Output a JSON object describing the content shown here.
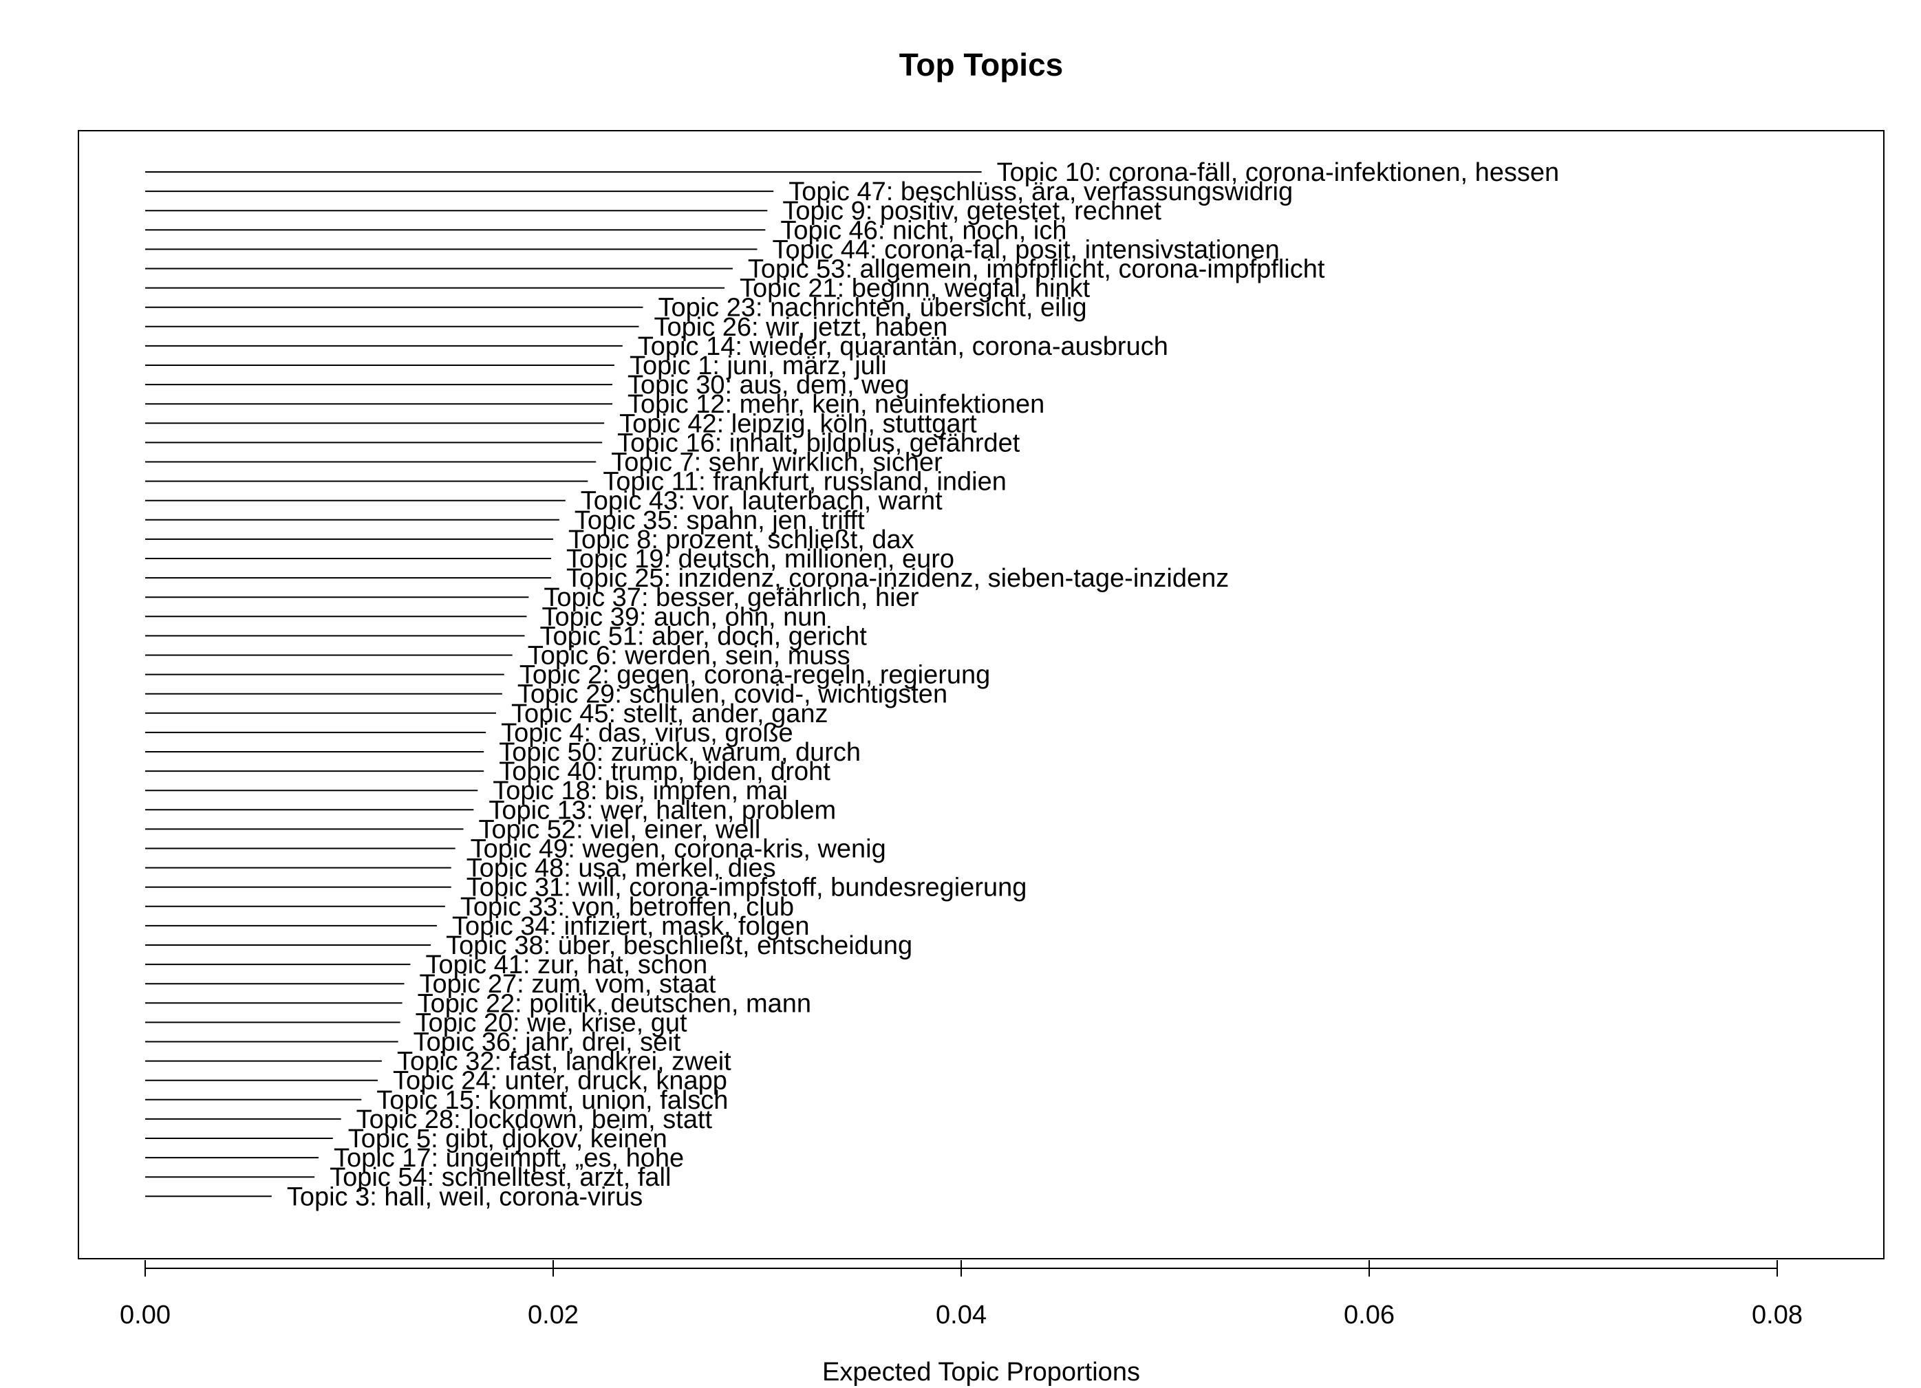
{
  "chart_data": {
    "type": "bar",
    "orientation": "horizontal",
    "title": "Top Topics",
    "xlabel": "Expected Topic Proportions",
    "ylabel": "",
    "xlim": [
      0,
      0.085
    ],
    "xticks": [
      0.0,
      0.02,
      0.04,
      0.06,
      0.08
    ],
    "xtick_labels": [
      "0.00",
      "0.02",
      "0.04",
      "0.06",
      "0.08"
    ],
    "grid": false,
    "categories": [
      "Topic 10: corona-fäll, corona-infektionen, hessen",
      "Topic 47: beschlüss, ära, verfassungswidrig",
      "Topic 9: positiv, getestet, rechnet",
      "Topic 46: nicht, noch, ich",
      "Topic 44: corona-fal, posit, intensivstationen",
      "Topic 53: allgemein, impfpflicht, corona-impfpflicht",
      "Topic 21: beginn, wegfal, hinkt",
      "Topic 23: nachrichten, übersicht, eilig",
      "Topic 26: wir, jetzt, haben",
      "Topic 14: wieder, quarantän, corona-ausbruch",
      "Topic 1: juni, märz, juli",
      "Topic 30: aus, dem, weg",
      "Topic 12: mehr, kein, neuinfektionen",
      "Topic 42: leipzig, köln, stuttgart",
      "Topic 16: inhalt, bildplus, gefährdet",
      "Topic 7: sehr, wirklich, sicher",
      "Topic 11: frankfurt, russland, indien",
      "Topic 43: vor, lauterbach, warnt",
      "Topic 35: spahn, jen, trifft",
      "Topic 8: prozent, schließt, dax",
      "Topic 19: deutsch, millionen, euro",
      "Topic 25: inzidenz, corona-inzidenz, sieben-tage-inzidenz",
      "Topic 37: besser, gefährlich, hier",
      "Topic 39: auch, ohn, nun",
      "Topic 51: aber, doch, gericht",
      "Topic 6: werden, sein, muss",
      "Topic 2: gegen, corona-regeln, regierung",
      "Topic 29: schulen, covid-, wichtigsten",
      "Topic 45: stellt, ander, ganz",
      "Topic 4: das, virus, große",
      "Topic 50: zurück, warum, durch",
      "Topic 40: trump, biden, droht",
      "Topic 18: bis, impfen, mai",
      "Topic 13: wer, halten, problem",
      "Topic 52: viel, einer, well",
      "Topic 49: wegen, corona-kris, wenig",
      "Topic 48: usa, merkel, dies",
      "Topic 31: will, corona-impfstoff, bundesregierung",
      "Topic 33: von, betroffen, club",
      "Topic 34: infiziert, mask, folgen",
      "Topic 38: über, beschließt, entscheidung",
      "Topic 41: zur, hat, schon",
      "Topic 27: zum, vom, staat",
      "Topic 22: politik, deutschen, mann",
      "Topic 20: wie, krise, gut",
      "Topic 36: jahr, drei, seit",
      "Topic 32: fast, landkrei, zweit",
      "Topic 24: unter, druck, knapp",
      "Topic 15: kommt, union, falsch",
      "Topic 28: lockdown, beim, statt",
      "Topic 5: gibt, djokov, keinen",
      "Topic 17: ungeimpft, „es, hohe",
      "Topic 54: schnelltest, arzt, fall",
      "Topic 3: hall, weil, corona-virus"
    ],
    "values": [
      0.041,
      0.0308,
      0.0305,
      0.0304,
      0.03,
      0.0288,
      0.0284,
      0.0244,
      0.0242,
      0.0234,
      0.023,
      0.0229,
      0.0229,
      0.0225,
      0.0224,
      0.0221,
      0.0217,
      0.0206,
      0.0203,
      0.02,
      0.0199,
      0.0199,
      0.0188,
      0.0187,
      0.0186,
      0.018,
      0.0176,
      0.0175,
      0.0172,
      0.0167,
      0.0166,
      0.0166,
      0.0163,
      0.0161,
      0.0156,
      0.0152,
      0.015,
      0.015,
      0.0147,
      0.0143,
      0.014,
      0.013,
      0.0127,
      0.0126,
      0.0125,
      0.0124,
      0.0116,
      0.0114,
      0.0106,
      0.0096,
      0.0092,
      0.0085,
      0.0083,
      0.0062
    ]
  }
}
